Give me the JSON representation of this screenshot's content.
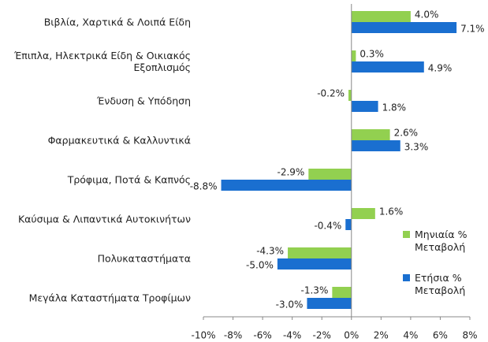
{
  "chart_data": {
    "type": "hbar",
    "categories": [
      "Βιβλία, Χαρτικά & Λοιπά Είδη",
      "Έπιπλα, Ηλεκτρικά Είδη & Οικιακός Εξοπλισμός",
      "Ένδυση & Υπόδηση",
      "Φαρμακευτικά & Καλλυντικά",
      "Τρόφιμα, Ποτά & Καπνός",
      "Καύσιμα & Λιπαντικά Αυτοκινήτων",
      "Πολυκαταστήματα",
      "Μεγάλα Καταστήματα Τροφίμων"
    ],
    "series": [
      {
        "name": "Μηνιαία % Μεταβολή",
        "color": "#92d050",
        "values": [
          4.0,
          0.3,
          -0.2,
          2.6,
          -2.9,
          1.6,
          -4.3,
          -1.3
        ],
        "value_labels": [
          "4.0%",
          "0.3%",
          "-0.2%",
          "2.6%",
          "-2.9%",
          "1.6%",
          "-4.3%",
          "-1.3%"
        ]
      },
      {
        "name": "Ετήσια % Μεταβολή",
        "color": "#1a6fd0",
        "values": [
          7.1,
          4.9,
          1.8,
          3.3,
          -8.8,
          -0.4,
          -5.0,
          -3.0
        ],
        "value_labels": [
          "7.1%",
          "4.9%",
          "1.8%",
          "3.3%",
          "-8.8%",
          "-0.4%",
          "-5.0%",
          "-3.0%"
        ]
      }
    ],
    "xlim": [
      -10,
      8
    ],
    "xticks": [
      {
        "value": -10,
        "label": "-10%"
      },
      {
        "value": -8,
        "label": "-8%"
      },
      {
        "value": -6,
        "label": "-6%"
      },
      {
        "value": -4,
        "label": "-4%"
      },
      {
        "value": -2,
        "label": "-2%"
      },
      {
        "value": 0,
        "label": "0%"
      },
      {
        "value": 2,
        "label": "2%"
      },
      {
        "value": 4,
        "label": "4%"
      },
      {
        "value": 6,
        "label": "6%"
      },
      {
        "value": 8,
        "label": "8%"
      }
    ],
    "legend": "right"
  }
}
